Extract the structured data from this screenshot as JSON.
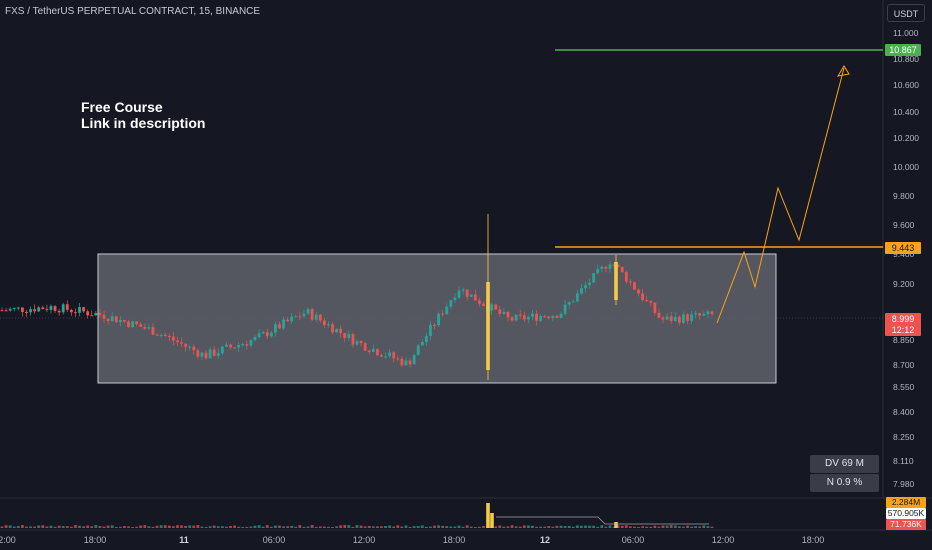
{
  "header": {
    "symbol_line": "FXS / TetherUS PERPETUAL CONTRACT, 15, BINANCE",
    "currency": "USDT"
  },
  "note": {
    "line1": "Free Course",
    "line2": "Link in description"
  },
  "price_axis": {
    "ticks": [
      "11.000",
      "10.800",
      "10.600",
      "10.400",
      "10.200",
      "10.000",
      "9.800",
      "9.600",
      "9.400",
      "9.200",
      "8.850",
      "8.700",
      "8.550",
      "8.400",
      "8.250",
      "8.110",
      "7.980"
    ],
    "target_price": "10.867",
    "level_price": "9.443",
    "last_price": "8.999",
    "countdown": "12:12"
  },
  "stats": {
    "dv": "DV 69 M",
    "n": "N 0.9 %"
  },
  "volume_axis": {
    "v1": "2.284M",
    "v2": "570.905K",
    "v3": "71.736K"
  },
  "time_axis": {
    "labels": [
      "2:00",
      "18:00",
      "11",
      "06:00",
      "12:00",
      "18:00",
      "12",
      "06:00",
      "12:00",
      "18:00"
    ]
  },
  "colors": {
    "background": "#151822",
    "up": "#26a69a",
    "down": "#ef5350",
    "target_line": "#4caf50",
    "level_line": "#f7a21b",
    "range_box": "#e9ecf2"
  },
  "chart_data": {
    "type": "candlestick",
    "symbol": "FXS / TetherUS PERPETUAL CONTRACT",
    "interval": "15",
    "exchange": "BINANCE",
    "horizontal_lines": [
      {
        "price": 10.867
      },
      {
        "price": 9.443
      }
    ],
    "range_box": {
      "top": 9.4,
      "bottom": 8.62
    },
    "projection_path": [
      {
        "time": "12 11:00",
        "price": 8.99
      },
      {
        "time": "12 12:30",
        "price": 9.43
      },
      {
        "time": "12 13:15",
        "price": 9.2
      },
      {
        "time": "12 14:45",
        "price": 9.85
      },
      {
        "time": "12 15:30",
        "price": 9.49
      },
      {
        "time": "12 17:30",
        "price": 10.72
      }
    ],
    "price_series": [
      {
        "time": "10 12:00",
        "close": 9.03
      },
      {
        "time": "10 18:00",
        "close": 9.05
      },
      {
        "time": "11 00:00",
        "close": 9.0
      },
      {
        "time": "11 03:00",
        "close": 8.9
      },
      {
        "time": "11 06:00",
        "close": 8.75
      },
      {
        "time": "11 09:00",
        "close": 8.85
      },
      {
        "time": "11 12:00",
        "close": 9.02
      },
      {
        "time": "11 15:00",
        "close": 8.83
      },
      {
        "time": "11 18:00",
        "close": 8.7
      },
      {
        "time": "11 21:00",
        "close": 9.17
      },
      {
        "time": "12 00:00",
        "close": 8.97
      },
      {
        "time": "12 03:00",
        "close": 9.01
      },
      {
        "time": "12 06:00",
        "close": 9.35
      },
      {
        "time": "12 09:00",
        "close": 8.97
      },
      {
        "time": "12 11:00",
        "close": 8.999
      }
    ]
  }
}
